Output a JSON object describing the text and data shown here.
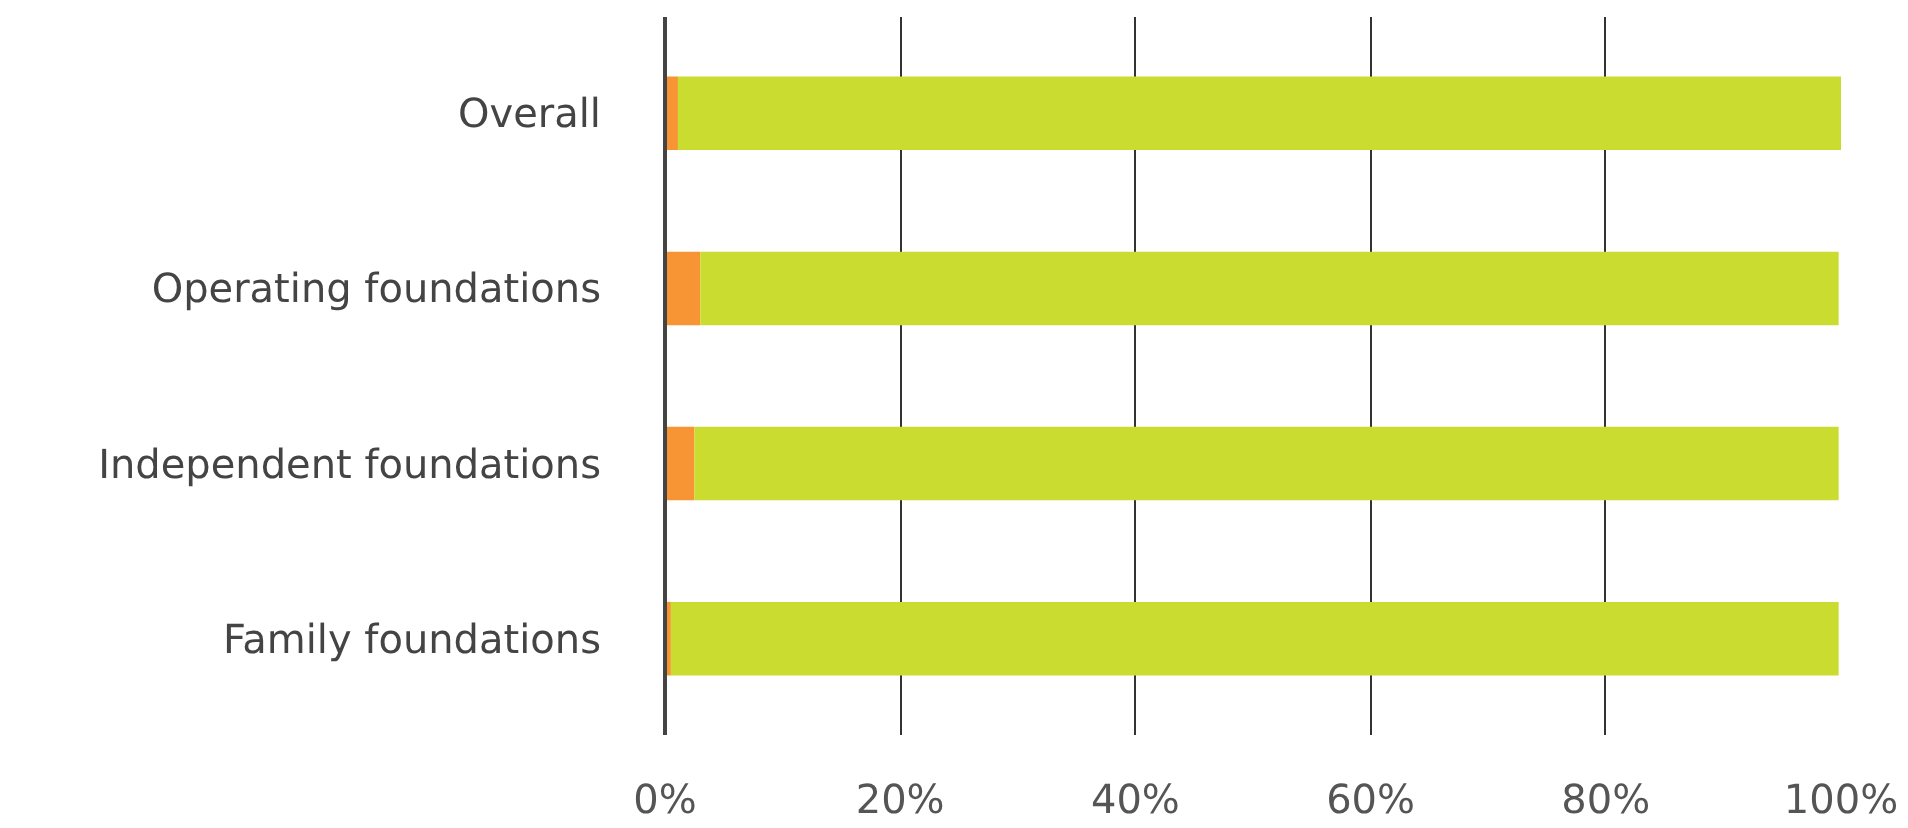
{
  "chart_data": {
    "type": "bar",
    "orientation": "horizontal",
    "stacked": true,
    "categories": [
      "Overall",
      "Operating foundations",
      "Independent foundations",
      "Family foundations"
    ],
    "series": [
      {
        "color": "#f79433",
        "values": [
          1.1,
          3.0,
          2.5,
          0.5
        ]
      },
      {
        "color": "#cbdc30",
        "values": [
          98.9,
          96.8,
          97.3,
          99.3
        ]
      }
    ],
    "xlim": [
      0,
      100
    ],
    "xticks": [
      {
        "value": 0,
        "label": "0%"
      },
      {
        "value": 20,
        "label": "20%"
      },
      {
        "value": 40,
        "label": "40%"
      },
      {
        "value": 60,
        "label": "60%"
      },
      {
        "value": 80,
        "label": "80%"
      },
      {
        "value": 100,
        "label": "100%"
      }
    ],
    "grid": "x"
  }
}
